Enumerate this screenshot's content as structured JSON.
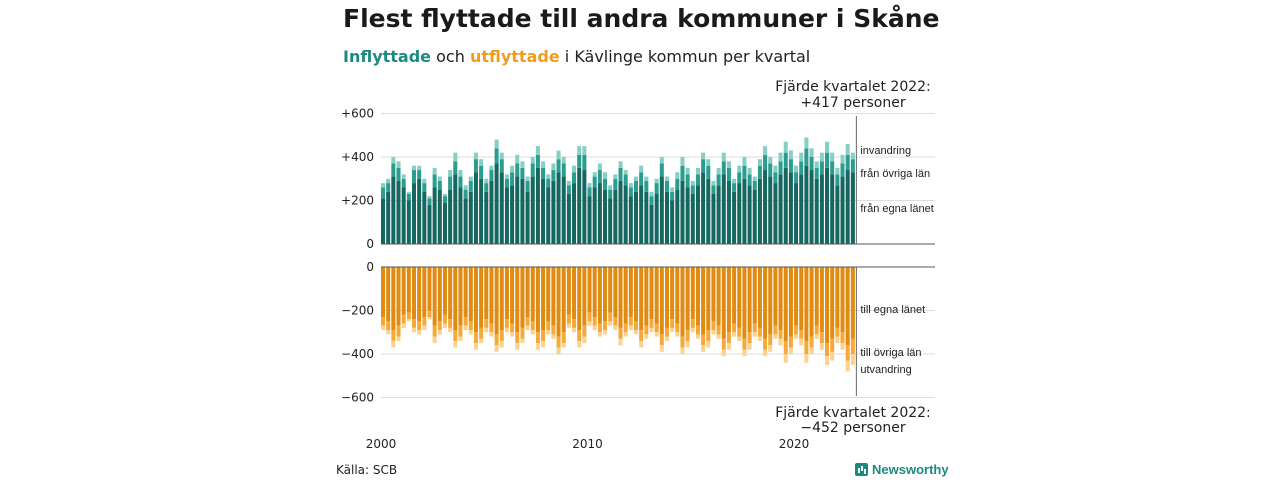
{
  "header": {
    "title": "Flest flyttade till andra kommuner i Skåne",
    "subtitle_in": "Inflyttade",
    "subtitle_och": "och",
    "subtitle_out": "utflyttade",
    "subtitle_rest": "i Kävlinge kommun per kvartal"
  },
  "footer": {
    "source": "Källa: SCB",
    "brand": "Newsworthy"
  },
  "colors": {
    "in_egna": "#15675f",
    "in_ovriga": "#2a9d8f",
    "in_invandring": "#86cfc4",
    "out_egna": "#e08b12",
    "out_ovriga": "#f5a93a",
    "out_utvandring": "#fbd38e",
    "grid": "#dddddd",
    "axis": "#555555"
  },
  "chart_data": {
    "type": "bar",
    "stacked": true,
    "x_start": "2000 Q1",
    "x_end": "2022 Q4",
    "x_ticks": [
      "2000",
      "2010",
      "2020"
    ],
    "y_ticks_top": [
      "+600",
      "+400",
      "+200",
      "0"
    ],
    "y_ticks_bottom": [
      "0",
      "−200",
      "−400",
      "−600"
    ],
    "ylim_top": [
      0,
      600
    ],
    "ylim_bottom": [
      -600,
      0
    ],
    "grid": true,
    "inflow_series": [
      {
        "name": "från egna länet",
        "values": [
          210,
          240,
          310,
          290,
          260,
          200,
          280,
          300,
          240,
          180,
          260,
          250,
          190,
          250,
          320,
          260,
          210,
          240,
          330,
          300,
          240,
          290,
          370,
          330,
          260,
          270,
          310,
          300,
          240,
          310,
          350,
          300,
          260,
          290,
          330,
          310,
          230,
          280,
          350,
          340,
          220,
          260,
          280,
          250,
          210,
          250,
          290,
          270,
          220,
          240,
          270,
          240,
          180,
          230,
          310,
          240,
          200,
          250,
          290,
          260,
          230,
          270,
          330,
          300,
          230,
          270,
          320,
          290,
          240,
          280,
          300,
          270,
          250,
          300,
          340,
          310,
          280,
          320,
          350,
          330,
          280,
          320,
          360,
          340,
          300,
          320,
          350,
          320,
          270,
          310,
          340,
          330
        ]
      },
      {
        "name": "från övriga län",
        "values": [
          50,
          40,
          60,
          60,
          40,
          30,
          60,
          40,
          40,
          30,
          60,
          40,
          30,
          60,
          60,
          50,
          40,
          50,
          60,
          60,
          40,
          50,
          70,
          60,
          40,
          60,
          60,
          50,
          50,
          60,
          60,
          50,
          40,
          50,
          60,
          60,
          40,
          50,
          60,
          70,
          40,
          50,
          60,
          50,
          40,
          50,
          60,
          50,
          40,
          50,
          60,
          50,
          40,
          50,
          60,
          50,
          40,
          50,
          70,
          60,
          40,
          50,
          60,
          60,
          40,
          50,
          60,
          60,
          40,
          50,
          60,
          50,
          40,
          60,
          70,
          60,
          50,
          60,
          70,
          60,
          50,
          60,
          80,
          60,
          50,
          60,
          70,
          60,
          50,
          60,
          70,
          60
        ]
      },
      {
        "name": "invandring",
        "values": [
          20,
          20,
          30,
          30,
          20,
          10,
          20,
          20,
          20,
          10,
          30,
          20,
          10,
          30,
          40,
          30,
          20,
          20,
          30,
          30,
          20,
          20,
          40,
          30,
          20,
          30,
          40,
          30,
          20,
          30,
          40,
          30,
          20,
          30,
          40,
          30,
          20,
          30,
          40,
          40,
          20,
          20,
          30,
          30,
          20,
          20,
          30,
          20,
          20,
          20,
          30,
          20,
          20,
          20,
          30,
          20,
          20,
          30,
          40,
          30,
          20,
          30,
          30,
          30,
          20,
          30,
          40,
          30,
          20,
          30,
          40,
          30,
          20,
          30,
          40,
          30,
          30,
          40,
          50,
          40,
          30,
          40,
          50,
          40,
          30,
          40,
          50,
          40,
          30,
          40,
          50,
          30
        ]
      }
    ],
    "outflow_series": [
      {
        "name": "till egna länet",
        "values": [
          -230,
          -250,
          -290,
          -270,
          -220,
          -210,
          -240,
          -250,
          -230,
          -200,
          -270,
          -250,
          -220,
          -240,
          -290,
          -270,
          -230,
          -250,
          -300,
          -280,
          -240,
          -260,
          -310,
          -290,
          -240,
          -260,
          -300,
          -280,
          -230,
          -250,
          -300,
          -290,
          -250,
          -270,
          -320,
          -300,
          -220,
          -240,
          -290,
          -270,
          -210,
          -230,
          -260,
          -250,
          -210,
          -230,
          -280,
          -260,
          -230,
          -250,
          -290,
          -270,
          -240,
          -260,
          -310,
          -280,
          -240,
          -260,
          -320,
          -290,
          -240,
          -270,
          -310,
          -290,
          -250,
          -270,
          -330,
          -300,
          -260,
          -280,
          -330,
          -300,
          -260,
          -280,
          -330,
          -310,
          -270,
          -290,
          -340,
          -320,
          -270,
          -290,
          -340,
          -320,
          -270,
          -300,
          -350,
          -330,
          -280,
          -300,
          -360,
          -330
        ]
      },
      {
        "name": "till övriga län",
        "values": [
          -40,
          -40,
          -50,
          -50,
          -40,
          -30,
          -40,
          -40,
          -40,
          -30,
          -50,
          -40,
          -40,
          -40,
          -50,
          -50,
          -40,
          -40,
          -50,
          -50,
          -40,
          -40,
          -50,
          -50,
          -40,
          -40,
          -50,
          -50,
          -40,
          -40,
          -50,
          -50,
          -40,
          -40,
          -50,
          -50,
          -40,
          -40,
          -50,
          -50,
          -40,
          -40,
          -40,
          -40,
          -40,
          -40,
          -50,
          -40,
          -40,
          -40,
          -50,
          -40,
          -40,
          -40,
          -50,
          -40,
          -40,
          -40,
          -50,
          -50,
          -40,
          -40,
          -50,
          -50,
          -40,
          -40,
          -50,
          -50,
          -40,
          -40,
          -50,
          -50,
          -40,
          -40,
          -50,
          -50,
          -40,
          -40,
          -60,
          -50,
          -40,
          -40,
          -60,
          -50,
          -40,
          -50,
          -60,
          -60,
          -40,
          -50,
          -70,
          -70
        ]
      },
      {
        "name": "utvandring",
        "values": [
          -20,
          -20,
          -30,
          -20,
          -20,
          -10,
          -20,
          -20,
          -20,
          -10,
          -30,
          -20,
          -20,
          -20,
          -30,
          -20,
          -20,
          -20,
          -30,
          -20,
          -20,
          -20,
          -30,
          -30,
          -20,
          -20,
          -30,
          -20,
          -20,
          -20,
          -30,
          -30,
          -20,
          -20,
          -30,
          -20,
          -20,
          -20,
          -30,
          -30,
          -20,
          -20,
          -20,
          -20,
          -20,
          -20,
          -30,
          -20,
          -20,
          -20,
          -30,
          -20,
          -20,
          -20,
          -30,
          -20,
          -20,
          -20,
          -30,
          -30,
          -20,
          -20,
          -30,
          -30,
          -20,
          -20,
          -30,
          -30,
          -20,
          -20,
          -30,
          -30,
          -20,
          -20,
          -30,
          -30,
          -20,
          -30,
          -40,
          -30,
          -20,
          -30,
          -40,
          -30,
          -20,
          -30,
          -40,
          -40,
          -30,
          -30,
          -50,
          -50
        ]
      }
    ],
    "annotations": {
      "top": [
        "Fjärde kvartalet 2022:",
        "+417 personer"
      ],
      "bottom": [
        "Fjärde kvartalet 2022:",
        "−452 personer"
      ]
    }
  }
}
